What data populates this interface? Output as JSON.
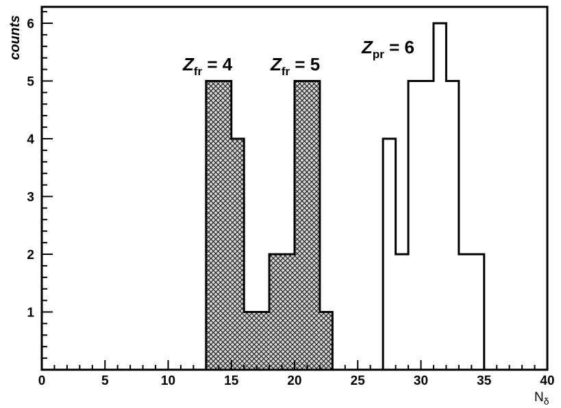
{
  "chart_data": {
    "type": "histogram",
    "xlabel": "N",
    "xlabel_sub": "δ",
    "ylabel": "counts",
    "xlim": [
      0,
      40
    ],
    "ylim": [
      0,
      6.4
    ],
    "x_ticks": [
      0,
      5,
      10,
      15,
      20,
      25,
      30,
      35,
      40
    ],
    "y_ticks": [
      1,
      2,
      3,
      4,
      5,
      6
    ],
    "grid": false,
    "series": [
      {
        "style": "cross-hatched",
        "bins": [
          {
            "x0": 13,
            "x1": 15,
            "y": 5
          },
          {
            "x0": 15,
            "x1": 16,
            "y": 4
          },
          {
            "x0": 16,
            "x1": 18,
            "y": 1
          },
          {
            "x0": 18,
            "x1": 20,
            "y": 2
          },
          {
            "x0": 20,
            "x1": 22,
            "y": 5
          },
          {
            "x0": 22,
            "x1": 23,
            "y": 1
          }
        ]
      },
      {
        "style": "open",
        "bins": [
          {
            "x0": 27,
            "x1": 28,
            "y": 4
          },
          {
            "x0": 28,
            "x1": 29,
            "y": 2
          },
          {
            "x0": 29,
            "x1": 31,
            "y": 5
          },
          {
            "x0": 31,
            "x1": 32,
            "y": 6
          },
          {
            "x0": 32,
            "x1": 33,
            "y": 5
          },
          {
            "x0": 33,
            "x1": 35,
            "y": 2
          }
        ]
      }
    ],
    "annotations": [
      {
        "base": "Z",
        "sub": "fr",
        "rest": " = 4"
      },
      {
        "base": "Z",
        "sub": "fr",
        "rest": " = 5"
      },
      {
        "base": "Z",
        "sub": "pr",
        "rest": " = 6"
      }
    ]
  }
}
